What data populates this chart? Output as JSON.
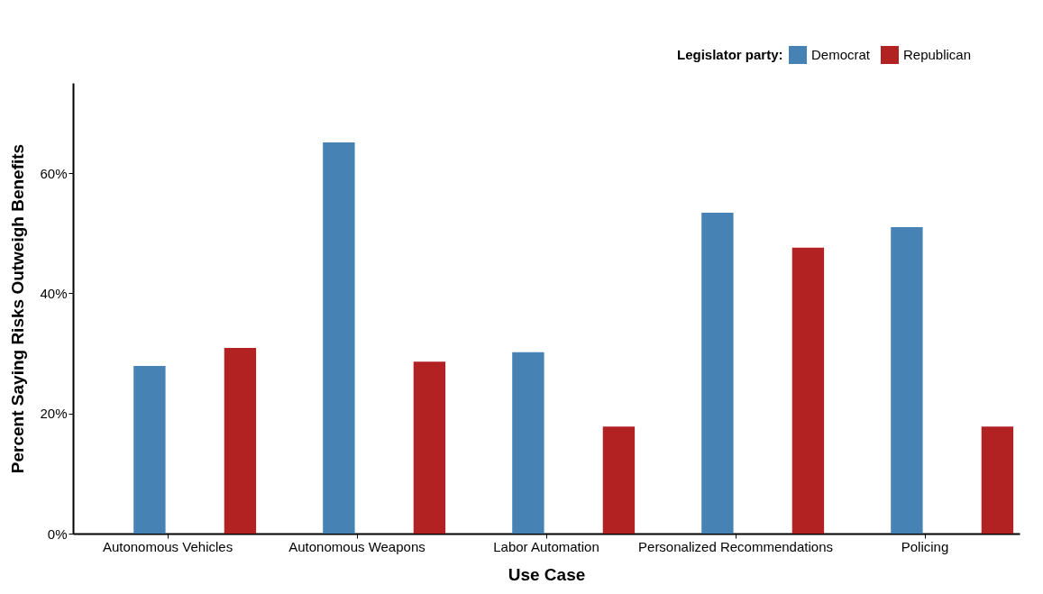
{
  "chart_data": {
    "type": "bar",
    "xlabel": "Use Case",
    "ylabel": "Percent Saying Risks Outweigh Benefits",
    "legend_title": "Legislator party:",
    "categories": [
      "Autonomous Vehicles",
      "Autonomous Weapons",
      "Labor Automation",
      "Personalized Recommendations",
      "Policing"
    ],
    "series": [
      {
        "name": "Democrat",
        "color": "#4682b4",
        "values": [
          27.9,
          65.1,
          30.2,
          53.4,
          51.0
        ]
      },
      {
        "name": "Republican",
        "color": "#b22222",
        "values": [
          30.9,
          28.6,
          17.8,
          47.6,
          17.8
        ]
      }
    ],
    "ylim": [
      0,
      75
    ],
    "yticks": [
      {
        "value": 0,
        "label": "0%"
      },
      {
        "value": 20,
        "label": "20%"
      },
      {
        "value": 40,
        "label": "40%"
      },
      {
        "value": 60,
        "label": "60%"
      }
    ],
    "grid": false,
    "legend": "top right"
  }
}
